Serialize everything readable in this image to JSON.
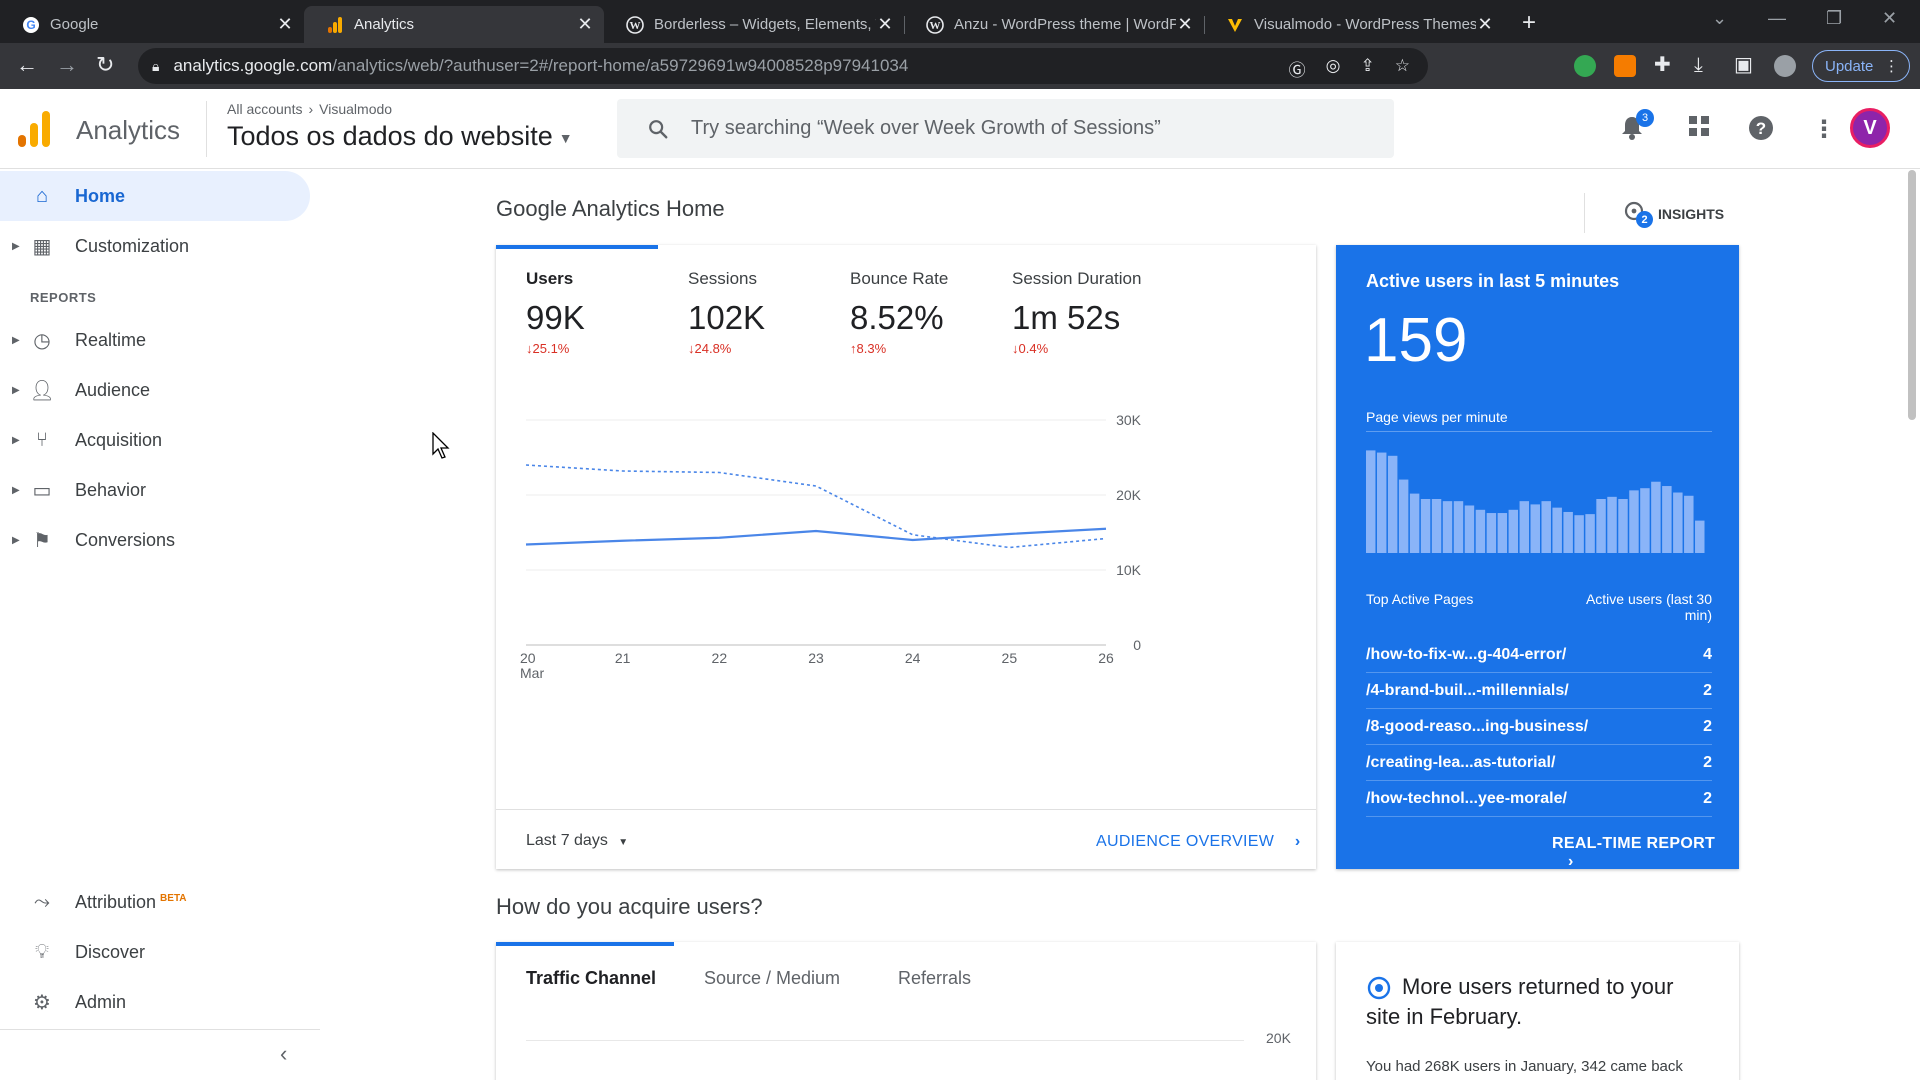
{
  "browser": {
    "tabs": [
      {
        "title": "Google",
        "icon": "google-icon"
      },
      {
        "title": "Analytics",
        "icon": "analytics-icon"
      },
      {
        "title": "Borderless – Widgets, Elements, T",
        "icon": "wordpress-icon"
      },
      {
        "title": "Anzu - WordPress theme | WordP",
        "icon": "wordpress-icon"
      },
      {
        "title": "Visualmodo - WordPress Themes",
        "icon": "visualmodo-icon"
      }
    ],
    "url_host": "analytics.google.com",
    "url_path": "/analytics/web/?authuser=2#/report-home/a59729691w94008528p97941034",
    "update_label": "Update"
  },
  "header": {
    "app_name": "Analytics",
    "breadcrumb_root": "All accounts",
    "breadcrumb_child": "Visualmodo",
    "property": "Todos os dados do website",
    "search_placeholder": "Try searching “Week over Week Growth of Sessions”",
    "notification_count": "3",
    "avatar_letter": "V"
  },
  "sidebar": {
    "home": "Home",
    "customization": "Customization",
    "reports_heading": "REPORTS",
    "realtime": "Realtime",
    "audience": "Audience",
    "acquisition": "Acquisition",
    "behavior": "Behavior",
    "conversions": "Conversions",
    "attribution": "Attribution",
    "attribution_badge": "BETA",
    "discover": "Discover",
    "admin": "Admin"
  },
  "home": {
    "title": "Google Analytics Home",
    "insights_label": "INSIGHTS",
    "insights_count": "2",
    "metrics": [
      {
        "label": "Users",
        "value": "99K",
        "change": "↓25.1%"
      },
      {
        "label": "Sessions",
        "value": "102K",
        "change": "↓24.8%"
      },
      {
        "label": "Bounce Rate",
        "value": "8.52%",
        "change": "↑8.3%"
      },
      {
        "label": "Session Duration",
        "value": "1m 52s",
        "change": "↓0.4%"
      }
    ],
    "date_range": "Last 7 days",
    "audience_link": "AUDIENCE OVERVIEW"
  },
  "chart_data": {
    "type": "line",
    "x": [
      "20",
      "21",
      "22",
      "23",
      "24",
      "25",
      "26"
    ],
    "x_sublabel": "Mar",
    "y_ticks": [
      "0",
      "10K",
      "20K",
      "30K"
    ],
    "ylim": [
      0,
      30000
    ],
    "series": [
      {
        "style": "solid",
        "values": [
          13400,
          13900,
          14300,
          15200,
          14000,
          14800,
          15500
        ]
      },
      {
        "style": "dashed",
        "values": [
          24000,
          23200,
          23000,
          21200,
          14700,
          13000,
          14200
        ]
      }
    ],
    "grid": true
  },
  "realtime": {
    "title": "Active users in last 5 minutes",
    "count": "159",
    "subtitle": "Page views per minute",
    "bars": [
      0.95,
      0.93,
      0.9,
      0.68,
      0.55,
      0.5,
      0.5,
      0.48,
      0.48,
      0.44,
      0.4,
      0.37,
      0.37,
      0.4,
      0.48,
      0.45,
      0.48,
      0.42,
      0.38,
      0.35,
      0.36,
      0.5,
      0.52,
      0.5,
      0.58,
      0.6,
      0.66,
      0.62,
      0.56,
      0.53,
      0.3
    ],
    "col_page": "Top Active Pages",
    "col_users": "Active users (last 30 min)",
    "rows": [
      {
        "page": "/how-to-fix-w...g-404-error/",
        "users": "4"
      },
      {
        "page": "/4-brand-buil...-millennials/",
        "users": "2"
      },
      {
        "page": "/8-good-reaso...ing-business/",
        "users": "2"
      },
      {
        "page": "/creating-lea...as-tutorial/",
        "users": "2"
      },
      {
        "page": "/how-technol...yee-morale/",
        "users": "2"
      }
    ],
    "link": "REAL-TIME REPORT"
  },
  "acquire": {
    "title": "How do you acquire users?",
    "tabs": [
      "Traffic Channel",
      "Source / Medium",
      "Referrals"
    ],
    "y_tick_top": "20K"
  },
  "info_card": {
    "title": "More users returned to your site in February.",
    "text": "You had 268K users in January, 342 came back"
  },
  "colors": {
    "accent": "#1a73e8",
    "negative": "#d93025",
    "ga_orange": "#f9ab00",
    "ga_dark_orange": "#e37400"
  }
}
